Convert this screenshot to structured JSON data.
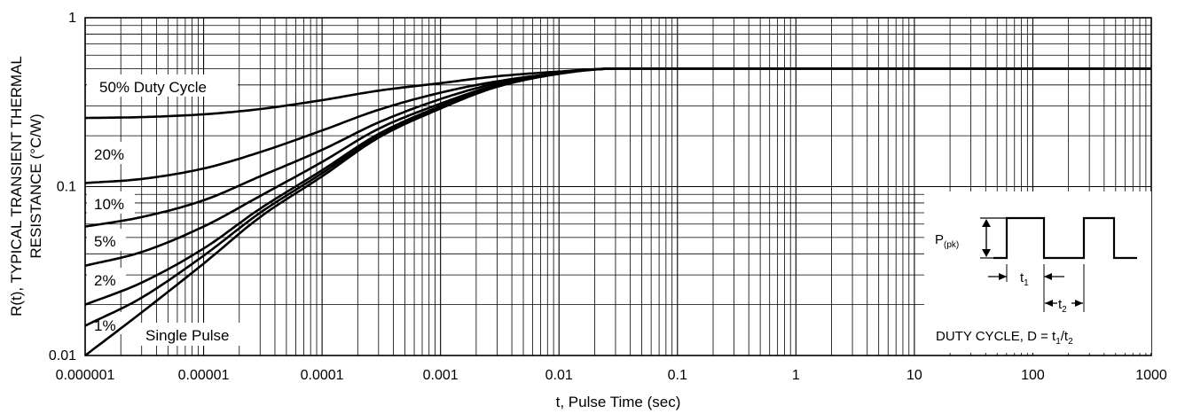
{
  "chart_data": {
    "type": "line",
    "title": "",
    "xlabel": "t, Pulse Time (sec)",
    "ylabel_line1": "R(t), TYPICAL TRANSIENT THERMAL",
    "ylabel_line2": "RESISTANCE (°C/W)",
    "x_scale": "log",
    "y_scale": "log",
    "xlim": [
      1e-06,
      1000
    ],
    "ylim": [
      0.01,
      1
    ],
    "grid": true,
    "x_tick_labels": [
      "0.000001",
      "0.00001",
      "0.0001",
      "0.001",
      "0.01",
      "0.1",
      "1",
      "10",
      "100",
      "1000"
    ],
    "y_tick_labels": [
      "0.01",
      "0.1",
      "1"
    ],
    "x": [
      1e-06,
      3e-06,
      1e-05,
      3e-05,
      0.0001,
      0.0003,
      0.001,
      0.003,
      0.01,
      0.03,
      1000
    ],
    "series": [
      {
        "name": "50% Duty Cycle",
        "values": [
          0.255,
          0.258,
          0.268,
          0.288,
          0.325,
          0.37,
          0.41,
          0.45,
          0.48,
          0.5,
          0.5
        ]
      },
      {
        "name": "20%",
        "values": [
          0.105,
          0.111,
          0.128,
          0.16,
          0.215,
          0.285,
          0.36,
          0.42,
          0.47,
          0.5,
          0.5
        ]
      },
      {
        "name": "10%",
        "values": [
          0.058,
          0.066,
          0.083,
          0.115,
          0.165,
          0.24,
          0.33,
          0.41,
          0.47,
          0.5,
          0.5
        ]
      },
      {
        "name": "5%",
        "values": [
          0.034,
          0.041,
          0.058,
          0.088,
          0.14,
          0.22,
          0.31,
          0.4,
          0.47,
          0.5,
          0.5
        ]
      },
      {
        "name": "2%",
        "values": [
          0.02,
          0.027,
          0.043,
          0.074,
          0.125,
          0.205,
          0.3,
          0.4,
          0.47,
          0.5,
          0.5
        ]
      },
      {
        "name": "1%",
        "values": [
          0.015,
          0.022,
          0.039,
          0.07,
          0.12,
          0.2,
          0.295,
          0.395,
          0.47,
          0.5,
          0.5
        ]
      },
      {
        "name": "Single Pulse",
        "values": [
          0.01,
          0.018,
          0.035,
          0.066,
          0.115,
          0.195,
          0.29,
          0.39,
          0.465,
          0.5,
          0.5
        ]
      }
    ],
    "inset": {
      "p_label": "P",
      "p_sub": "(pk)",
      "t_label": "t",
      "t1_sub": "1",
      "t2_sub": "2",
      "caption_prefix": "DUTY CYCLE, D = t",
      "caption_sub1": "1",
      "caption_mid": "/t",
      "caption_sub2": "2"
    }
  }
}
